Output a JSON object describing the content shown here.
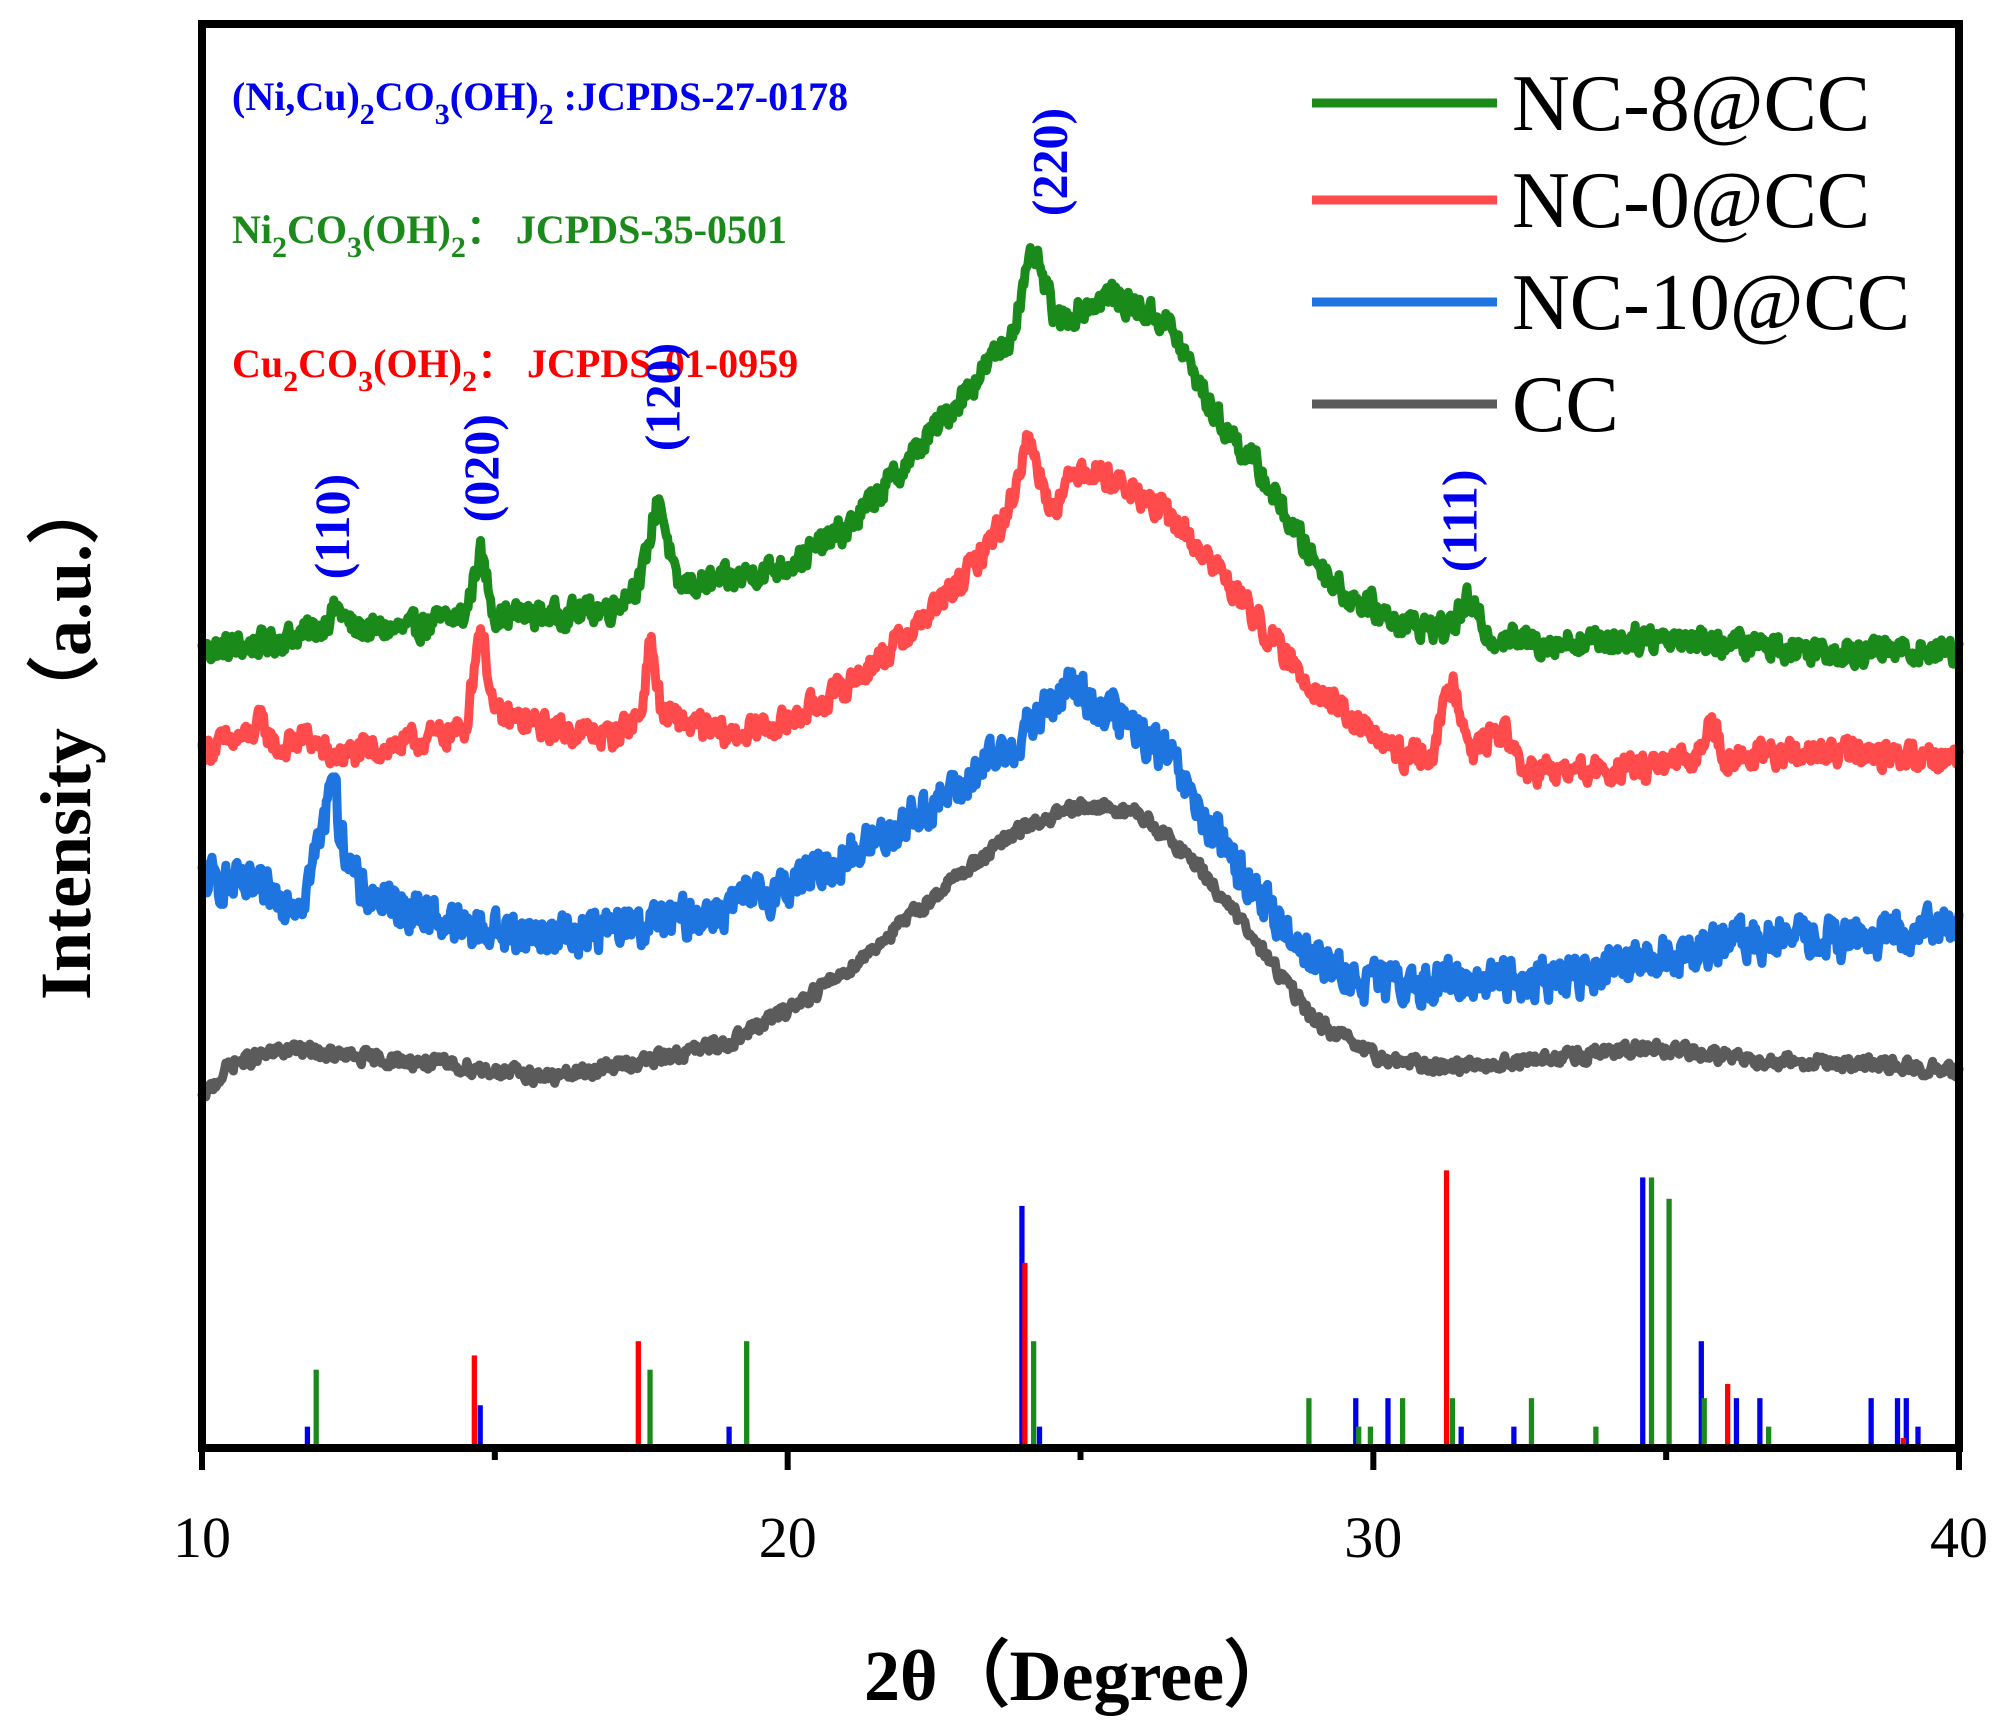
{
  "chart_data": {
    "type": "line",
    "xlabel": "2θ（Degree）",
    "ylabel": "Intensity（a.u.）",
    "xlim": [
      10,
      40
    ],
    "ylim": [
      0,
      100
    ],
    "x_ticks": [
      "10",
      "20",
      "30",
      "40"
    ],
    "grid": false,
    "legend_position": "top-right",
    "series": [
      {
        "name": "NC-8@CC",
        "color": "#1a8a1a",
        "noise": 1.3,
        "points": [
          [
            10,
            56
          ],
          [
            11,
            56.5
          ],
          [
            12,
            57.5
          ],
          [
            12.3,
            59
          ],
          [
            12.6,
            57.5
          ],
          [
            13.5,
            57.5
          ],
          [
            14.5,
            58.5
          ],
          [
            14.75,
            63
          ],
          [
            15,
            58.5
          ],
          [
            16,
            58.5
          ],
          [
            17,
            59
          ],
          [
            17.5,
            61
          ],
          [
            17.8,
            67
          ],
          [
            18.1,
            60.5
          ],
          [
            19,
            61
          ],
          [
            20,
            62
          ],
          [
            21,
            64.5
          ],
          [
            22,
            69
          ],
          [
            23,
            74
          ],
          [
            23.8,
            78
          ],
          [
            24.2,
            84
          ],
          [
            24.6,
            79
          ],
          [
            25.5,
            81
          ],
          [
            26.5,
            79
          ],
          [
            27.3,
            72.5
          ],
          [
            28,
            69
          ],
          [
            28.8,
            63.5
          ],
          [
            29.5,
            60
          ],
          [
            30.5,
            58
          ],
          [
            31.3,
            57.5
          ],
          [
            31.6,
            59.5
          ],
          [
            32,
            57
          ],
          [
            33,
            56.5
          ],
          [
            35,
            57
          ],
          [
            36,
            56.5
          ],
          [
            38,
            56
          ],
          [
            40,
            56
          ]
        ]
      },
      {
        "name": "NC-0@CC",
        "color": "#ff4b4b",
        "noise": 1.3,
        "points": [
          [
            10,
            49
          ],
          [
            10.8,
            50
          ],
          [
            11,
            51
          ],
          [
            11.3,
            49
          ],
          [
            11.8,
            50
          ],
          [
            12.2,
            48.5
          ],
          [
            13.5,
            49.5
          ],
          [
            14.5,
            50.5
          ],
          [
            14.75,
            58
          ],
          [
            15,
            51.5
          ],
          [
            16,
            50.5
          ],
          [
            17,
            50
          ],
          [
            17.5,
            51.5
          ],
          [
            17.65,
            57
          ],
          [
            17.85,
            51.5
          ],
          [
            19,
            50
          ],
          [
            20,
            51
          ],
          [
            21,
            53.5
          ],
          [
            22,
            57
          ],
          [
            23,
            61
          ],
          [
            23.75,
            65.5
          ],
          [
            24.1,
            71
          ],
          [
            24.5,
            66
          ],
          [
            25,
            69
          ],
          [
            25.6,
            68
          ],
          [
            26.5,
            65.5
          ],
          [
            27.5,
            61
          ],
          [
            28.5,
            55.5
          ],
          [
            29.5,
            51.5
          ],
          [
            30.5,
            48.5
          ],
          [
            31,
            48.8
          ],
          [
            31.35,
            54
          ],
          [
            31.7,
            49
          ],
          [
            32.2,
            50.5
          ],
          [
            32.6,
            47.5
          ],
          [
            34,
            47.5
          ],
          [
            35.5,
            48.2
          ],
          [
            35.75,
            51.5
          ],
          [
            36,
            48.5
          ],
          [
            38,
            48.8
          ],
          [
            40,
            48.5
          ]
        ]
      },
      {
        "name": "NC-10@CC",
        "color": "#1f75e0",
        "noise": 2.0,
        "points": [
          [
            10,
            40
          ],
          [
            10.6,
            39.5
          ],
          [
            11,
            39
          ],
          [
            11.7,
            38.5
          ],
          [
            12.1,
            44
          ],
          [
            12.2,
            48.5
          ],
          [
            12.35,
            43.5
          ],
          [
            12.7,
            39
          ],
          [
            13.5,
            38
          ],
          [
            14.5,
            36.5
          ],
          [
            16,
            36
          ],
          [
            17,
            36.5
          ],
          [
            18,
            37
          ],
          [
            19,
            38
          ],
          [
            20,
            39.5
          ],
          [
            21,
            41.5
          ],
          [
            22,
            44
          ],
          [
            23,
            46.5
          ],
          [
            24,
            50
          ],
          [
            24.8,
            53.5
          ],
          [
            25.6,
            51.5
          ],
          [
            26.5,
            48.5
          ],
          [
            27.2,
            43.5
          ],
          [
            28,
            39
          ],
          [
            28.7,
            35.5
          ],
          [
            29.5,
            33
          ],
          [
            30.5,
            32.5
          ],
          [
            32,
            33
          ],
          [
            33,
            33
          ],
          [
            34,
            33.5
          ],
          [
            35,
            34.5
          ],
          [
            36,
            35.5
          ],
          [
            37,
            35.8
          ],
          [
            38,
            35.8
          ],
          [
            39,
            36
          ],
          [
            40,
            37
          ]
        ]
      },
      {
        "name": "CC",
        "color": "#5b5b5b",
        "noise": 0.7,
        "points": [
          [
            10,
            24.5
          ],
          [
            10.5,
            27
          ],
          [
            11,
            27.5
          ],
          [
            11.5,
            28
          ],
          [
            12.5,
            27.5
          ],
          [
            14,
            27
          ],
          [
            15,
            26.5
          ],
          [
            16,
            26
          ],
          [
            17,
            26.8
          ],
          [
            18,
            27.5
          ],
          [
            19,
            28.5
          ],
          [
            20,
            30.8
          ],
          [
            21,
            33.5
          ],
          [
            22,
            37
          ],
          [
            23,
            40.5
          ],
          [
            24,
            43.5
          ],
          [
            25,
            45
          ],
          [
            25.5,
            45
          ],
          [
            26,
            44.5
          ],
          [
            27,
            41
          ],
          [
            28,
            35.5
          ],
          [
            29,
            30
          ],
          [
            30,
            27.5
          ],
          [
            31,
            26.8
          ],
          [
            32,
            27
          ],
          [
            33,
            27.3
          ],
          [
            34,
            27.8
          ],
          [
            35,
            28
          ],
          [
            36,
            27.5
          ],
          [
            37,
            27.2
          ],
          [
            38,
            27
          ],
          [
            39,
            26.8
          ],
          [
            40,
            26.5
          ]
        ]
      }
    ],
    "reference_sticks": [
      {
        "name": "(Ni,Cu)2CO3(OH)2 JCPDS-27-0178",
        "color": "#0000ee",
        "positions": [
          11.8,
          14.75,
          19.0,
          24.0,
          24.3,
          29.7,
          30.25,
          31.5,
          32.4,
          34.6,
          35.6,
          36.2,
          36.6,
          38.5,
          38.95,
          39.1,
          39.3
        ],
        "heights": [
          1.5,
          3,
          1.5,
          17,
          1.5,
          3.5,
          3.5,
          1.5,
          1.5,
          19,
          7.5,
          3.5,
          3.5,
          3.5,
          3.5,
          3.5,
          1.5
        ]
      },
      {
        "name": "Ni2CO3(OH)2 JCPDS-35-0501",
        "color": "#1a8a1a",
        "positions": [
          11.95,
          17.65,
          19.3,
          24.2,
          28.9,
          29.75,
          29.95,
          30.5,
          31.35,
          32.7,
          33.8,
          34.75,
          35.05,
          35.65,
          36.75
        ],
        "heights": [
          5.5,
          5.5,
          7.5,
          7.5,
          3.5,
          1.5,
          1.5,
          3.5,
          3.5,
          3.5,
          1.5,
          19,
          17.5,
          3.5,
          1.5
        ],
        "width": 1.5
      },
      {
        "name": "Cu2CO3(OH)2 JCPDS-01-0959",
        "color": "#ff0000",
        "positions": [
          14.65,
          17.45,
          24.05,
          31.25,
          36.05,
          39.05
        ],
        "heights": [
          6.5,
          7.5,
          13,
          19.5,
          4.5,
          0.7
        ],
        "width": 1.5
      }
    ],
    "reference_labels": [
      {
        "color": "#0000ee",
        "main": "(Ni,Cu)",
        "sub1": "2",
        "mid1": "CO",
        "sub2": "3",
        "mid2": "(OH)",
        "sub3": "2",
        "suffix": " :JCPDS-27-0178"
      },
      {
        "color": "#1a8a1a",
        "main": "Ni",
        "sub1": "2",
        "mid1": "CO",
        "sub2": "3",
        "mid2": "(OH)",
        "sub3": "2",
        "suffix": "：   JCPDS-35-0501"
      },
      {
        "color": "#ff0000",
        "main": "Cu",
        "sub1": "2",
        "mid1": "CO",
        "sub2": "3",
        "mid2": "(OH)",
        "sub3": "2",
        "suffix": "：   JCPDS-01-0959"
      }
    ],
    "peak_labels": [
      {
        "text": "(110)",
        "x": 12.2,
        "y": 61
      },
      {
        "text": "(020)",
        "x": 14.75,
        "y": 65
      },
      {
        "text": "(120)",
        "x": 17.85,
        "y": 70
      },
      {
        "text": "(220)",
        "x": 24.45,
        "y": 86.5
      },
      {
        "text": "(111)",
        "x": 31.45,
        "y": 61.5
      }
    ]
  }
}
